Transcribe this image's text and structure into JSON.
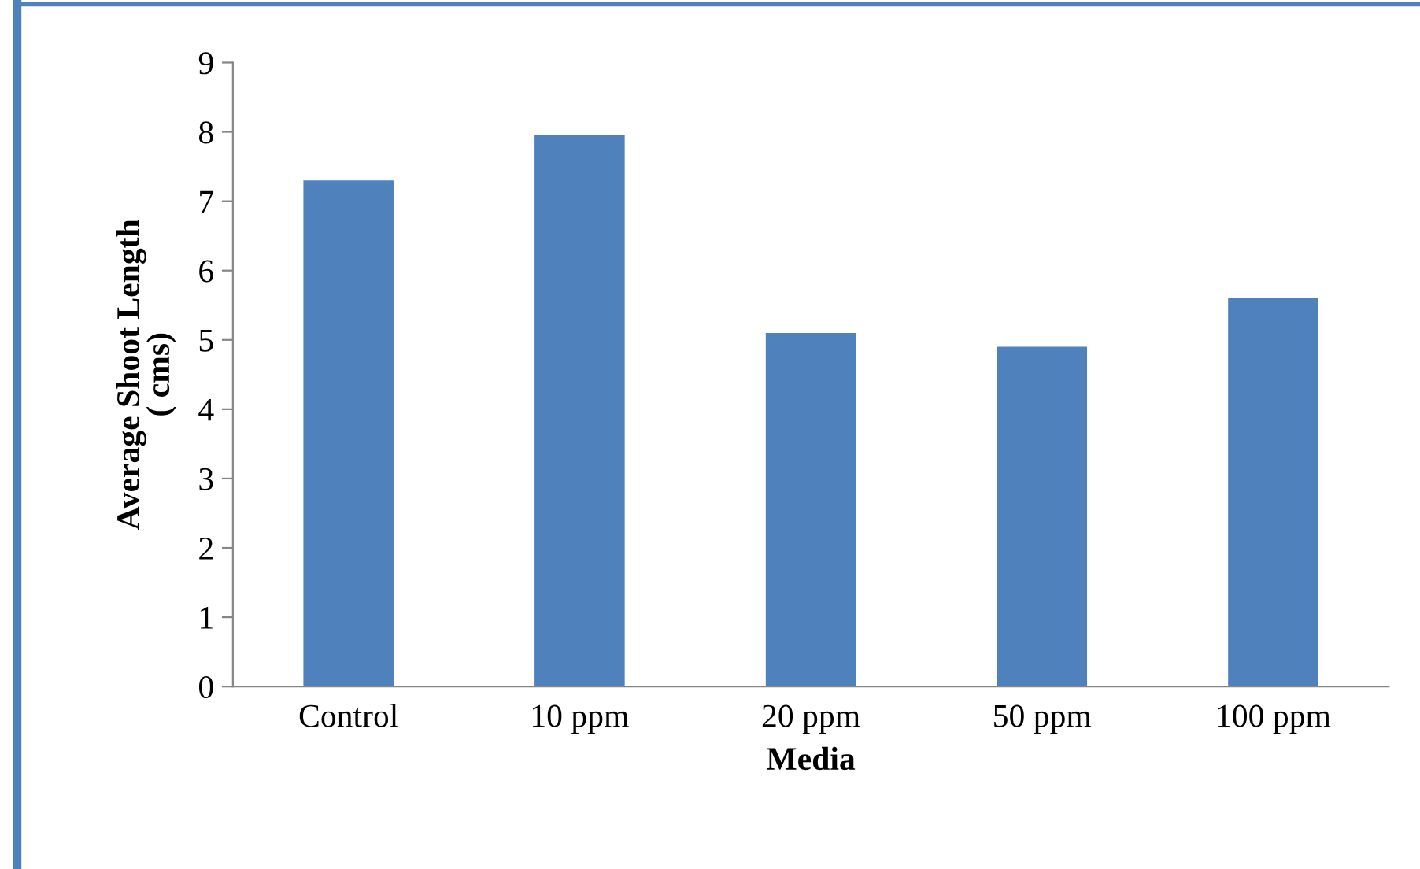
{
  "chart_data": {
    "type": "bar",
    "xlabel": "Media",
    "ylabel": "Average Shoot Length\n( cms)",
    "categories": [
      "Control",
      "10 ppm",
      "20 ppm",
      "50 ppm",
      "100 ppm"
    ],
    "values": [
      7.3,
      7.95,
      5.1,
      4.9,
      5.6
    ],
    "color": "#4f81bd",
    "ylim": [
      0,
      9
    ],
    "yticks": [
      0,
      1,
      2,
      3,
      4,
      5,
      6,
      7,
      8,
      9
    ],
    "grid": false,
    "legend": false
  }
}
